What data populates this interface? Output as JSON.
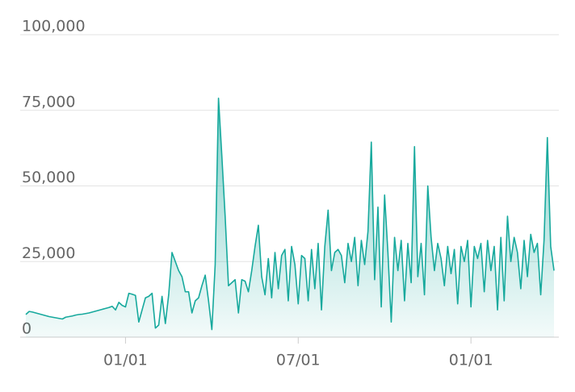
{
  "chart_data": {
    "type": "area",
    "color": "#17a99d",
    "grid": true,
    "ylim": [
      0,
      100000
    ],
    "yticks": [
      0,
      {
        "value": 25000,
        "label": "25,000"
      },
      {
        "value": 50000,
        "label": "50,000"
      },
      {
        "value": 75000,
        "label": "75,000"
      },
      {
        "value": 100000,
        "label": "100,000"
      }
    ],
    "categories": [
      null,
      null,
      null,
      null,
      null,
      null,
      null,
      null,
      null,
      null,
      null,
      null,
      null,
      null,
      null,
      null,
      null,
      null,
      null,
      null,
      null,
      null,
      null,
      null,
      null,
      null,
      null,
      null,
      null,
      null,
      "01/01",
      null,
      null,
      null,
      null,
      null,
      null,
      null,
      null,
      null,
      null,
      null,
      null,
      null,
      null,
      null,
      null,
      null,
      null,
      null,
      null,
      null,
      null,
      null,
      null,
      null,
      null,
      null,
      null,
      null,
      null,
      null,
      null,
      null,
      null,
      null,
      null,
      null,
      null,
      null,
      null,
      null,
      null,
      null,
      null,
      null,
      null,
      null,
      null,
      null,
      null,
      null,
      "07/01",
      null,
      null,
      null,
      null,
      null,
      null,
      null,
      null,
      null,
      null,
      null,
      null,
      null,
      null,
      null,
      null,
      null,
      null,
      null,
      null,
      null,
      null,
      null,
      null,
      null,
      null,
      null,
      null,
      null,
      null,
      null,
      null,
      null,
      null,
      null,
      null,
      null,
      null,
      null,
      null,
      null,
      null,
      null,
      null,
      null,
      null,
      null,
      null,
      null,
      null,
      null,
      "01/01",
      null,
      null,
      null,
      null,
      null,
      null,
      null,
      null,
      null,
      null,
      null,
      null,
      null,
      null,
      null,
      null,
      null,
      null,
      null,
      null,
      null,
      null,
      null,
      null,
      null
    ],
    "values": [
      7500,
      8500,
      8300,
      8000,
      7700,
      7400,
      7100,
      6800,
      6600,
      6400,
      6200,
      6000,
      6600,
      6800,
      7000,
      7300,
      7500,
      7600,
      7800,
      8000,
      8300,
      8600,
      8900,
      9200,
      9500,
      9800,
      10200,
      9000,
      11500,
      10500,
      10000,
      14500,
      14200,
      13800,
      5000,
      9000,
      13000,
      13500,
      14500,
      3000,
      4000,
      13500,
      4500,
      14000,
      28000,
      25000,
      22000,
      20000,
      15000,
      15000,
      8000,
      12000,
      13000,
      17000,
      20500,
      12000,
      2500,
      24000,
      79000,
      60000,
      40000,
      17000,
      18000,
      19000,
      8000,
      19000,
      18500,
      15000,
      22000,
      30000,
      37000,
      20000,
      14000,
      26000,
      13000,
      28000,
      16000,
      27000,
      29000,
      12000,
      30000,
      24000,
      11000,
      27000,
      26000,
      12000,
      29000,
      16000,
      31000,
      9000,
      30000,
      42000,
      22000,
      28000,
      29000,
      27000,
      18000,
      31000,
      25000,
      33000,
      17000,
      32000,
      24000,
      35000,
      64500,
      19000,
      43000,
      10000,
      47000,
      28000,
      5000,
      33000,
      22000,
      32000,
      12000,
      31000,
      18000,
      63000,
      20000,
      31000,
      14000,
      50000,
      33000,
      22000,
      31000,
      26000,
      17000,
      30000,
      21000,
      29000,
      11000,
      30000,
      25000,
      32000,
      10000,
      30000,
      26000,
      31000,
      15000,
      32000,
      22000,
      30000,
      9000,
      33000,
      12000,
      40000,
      25000,
      33000,
      28000,
      16000,
      32000,
      20000,
      34000,
      28000,
      31000,
      14000,
      32000,
      66000,
      30000,
      22000
    ]
  }
}
